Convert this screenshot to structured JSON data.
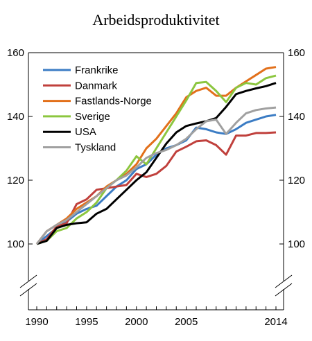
{
  "chart_data": {
    "type": "line",
    "title": "Arbeidsproduktivitet",
    "xlabel": "",
    "ylabel": "",
    "x": [
      1990,
      1991,
      1992,
      1993,
      1994,
      1995,
      1996,
      1997,
      1998,
      1999,
      2000,
      2001,
      2002,
      2003,
      2004,
      2005,
      2006,
      2007,
      2008,
      2009,
      2010,
      2011,
      2012,
      2013,
      2014
    ],
    "xticks": [
      "1990",
      "1995",
      "2000",
      "2005",
      "2014"
    ],
    "xtick_values": [
      1990,
      1995,
      2000,
      2005,
      2014
    ],
    "yticks_left": [
      "100",
      "120",
      "140",
      "160"
    ],
    "yticks_right": [
      "100",
      "120",
      "140",
      "160"
    ],
    "ytick_values": [
      100,
      120,
      140,
      160
    ],
    "ylim": [
      100,
      160
    ],
    "axis_break": true,
    "grid": false,
    "legend_position": "top-left",
    "series": [
      {
        "name": "Frankrike",
        "color": "#3b7cc4",
        "values": [
          100,
          102.5,
          105,
          107,
          109.5,
          111,
          112,
          115,
          118,
          120,
          123.5,
          125,
          128,
          130,
          131,
          132.5,
          136.5,
          136,
          135,
          134.5,
          136,
          138,
          139,
          140,
          140.5
        ]
      },
      {
        "name": "Danmark",
        "color": "#c0403c",
        "values": [
          100,
          101.5,
          105.5,
          106.5,
          112.5,
          114,
          117,
          117.5,
          118,
          118.5,
          122,
          121,
          122,
          124.5,
          129,
          130.5,
          132.2,
          132.5,
          131,
          128,
          134,
          134,
          134.8,
          134.8,
          135
        ]
      },
      {
        "name": "Fastlands-Norge",
        "color": "#e2701b",
        "values": [
          100,
          104,
          106,
          108,
          111,
          113,
          115,
          118,
          120,
          122,
          125,
          130,
          133,
          137,
          141,
          146,
          148,
          149,
          146.5,
          146.5,
          149,
          151,
          153,
          155,
          155.5
        ]
      },
      {
        "name": "Sverige",
        "color": "#8cc63f",
        "values": [
          100,
          101,
          104,
          105,
          108,
          110,
          113,
          117.5,
          120,
          123,
          127.5,
          125,
          130,
          135,
          140,
          145,
          150.5,
          150.8,
          148,
          144.5,
          149,
          150.5,
          150,
          152,
          152.8
        ]
      },
      {
        "name": "USA",
        "color": "#000000",
        "values": [
          100,
          101,
          105,
          106,
          106.5,
          106.8,
          109.5,
          111,
          114,
          117,
          120,
          122.5,
          127,
          131.5,
          135,
          137,
          137.8,
          138.5,
          139.5,
          143,
          147,
          148,
          148.8,
          149.5,
          150.5
        ]
      },
      {
        "name": "Tyskland",
        "color": "#a0a0a0",
        "values": [
          100,
          104,
          106,
          107.5,
          110,
          112.5,
          115,
          117.5,
          120,
          121.5,
          124,
          127,
          128.5,
          129.5,
          131,
          133,
          136,
          138.5,
          139,
          134.5,
          138,
          141,
          142,
          142.5,
          142.8
        ]
      }
    ]
  }
}
